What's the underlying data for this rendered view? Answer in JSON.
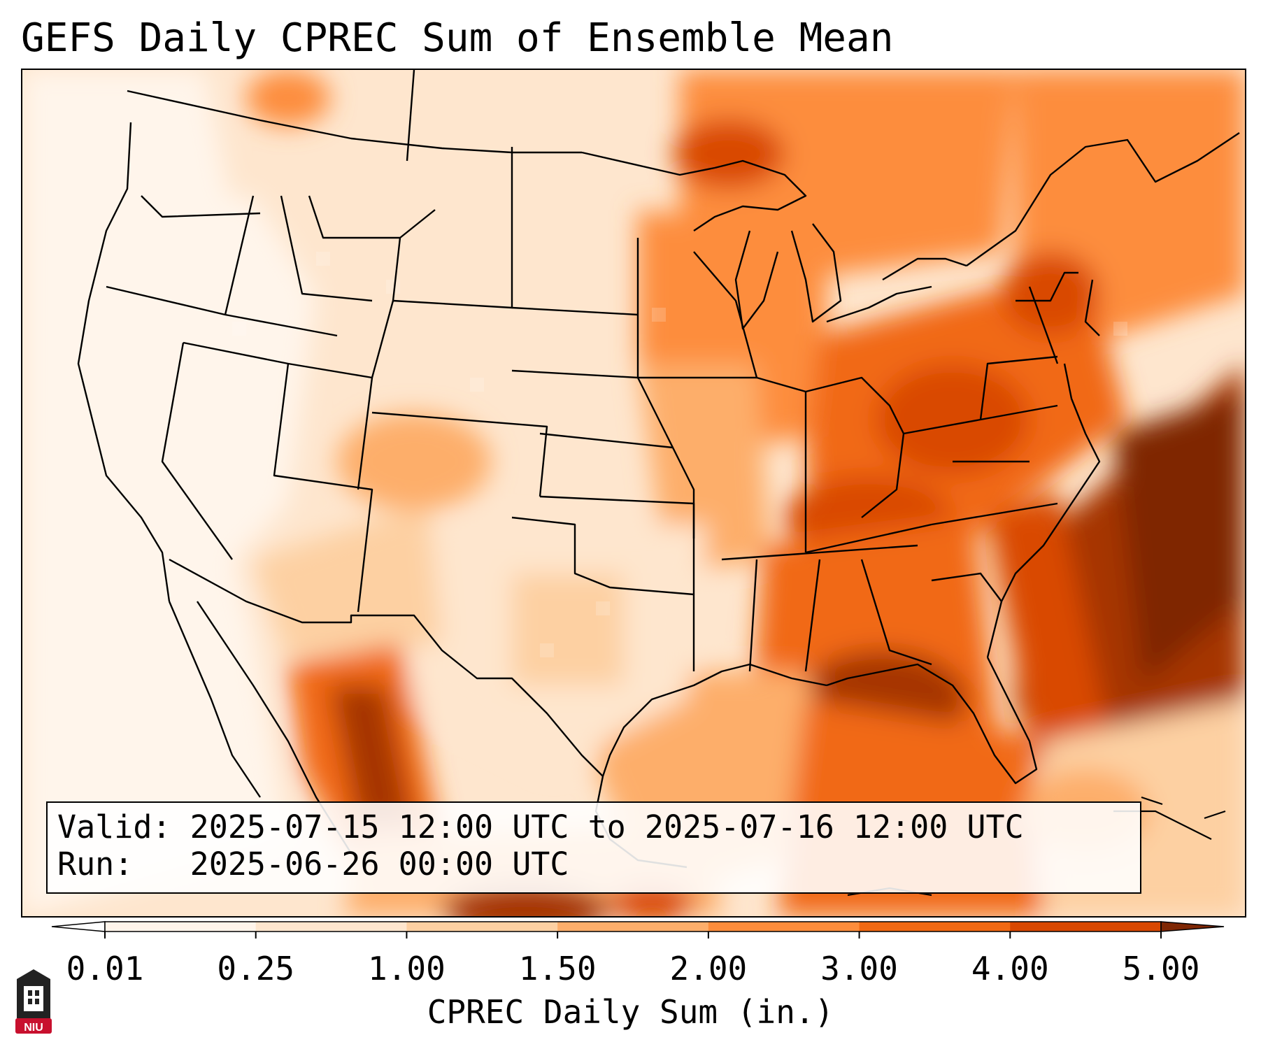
{
  "title": "GEFS Daily CPREC Sum of Ensemble Mean",
  "info": {
    "valid": "Valid: 2025-07-15 12:00 UTC to 2025-07-16 12:00 UTC",
    "run": "Run:   2025-06-26 00:00 UTC"
  },
  "colorbar": {
    "title": "CPREC Daily Sum (in.)",
    "ticks": [
      "0.01",
      "0.25",
      "1.00",
      "1.50",
      "2.00",
      "3.00",
      "4.00",
      "5.00"
    ],
    "colors": [
      "#fff5eb",
      "#fee6ce",
      "#fdd0a2",
      "#fdae6b",
      "#fd8d3c",
      "#f16913",
      "#d94801",
      "#a63603"
    ],
    "under_color": "#ffffff",
    "over_color": "#7f2704"
  },
  "logo": {
    "text": "NIU",
    "accent": "#c8102e"
  }
}
